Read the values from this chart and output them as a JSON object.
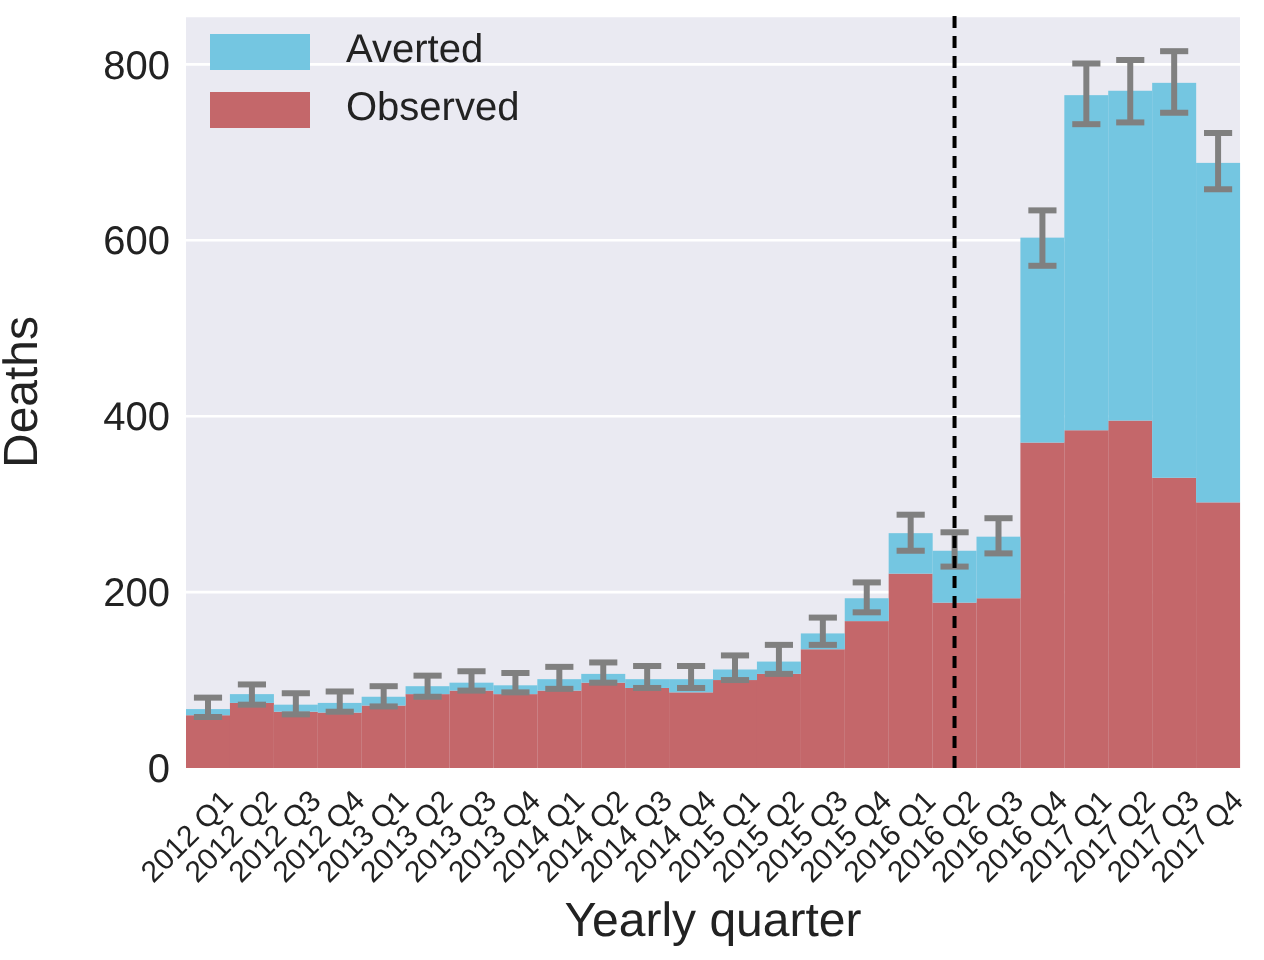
{
  "chart_data": {
    "type": "bar",
    "stacked": true,
    "xlabel": "Yearly quarter",
    "ylabel": "Deaths",
    "categories": [
      "2012 Q1",
      "2012 Q2",
      "2012 Q3",
      "2012 Q4",
      "2013 Q1",
      "2013 Q2",
      "2013 Q3",
      "2013 Q4",
      "2014 Q1",
      "2014 Q2",
      "2014 Q3",
      "2014 Q4",
      "2015 Q1",
      "2015 Q2",
      "2015 Q3",
      "2015 Q4",
      "2016 Q1",
      "2016 Q2",
      "2016 Q3",
      "2016 Q4",
      "2017 Q1",
      "2017 Q2",
      "2017 Q3",
      "2017 Q4"
    ],
    "series": [
      {
        "name": "Observed",
        "color": "#c4676a",
        "values": [
          60,
          74,
          64,
          63,
          71,
          84,
          88,
          84,
          88,
          97,
          91,
          86,
          100,
          107,
          135,
          167,
          221,
          188,
          193,
          370,
          384,
          395,
          330,
          302
        ]
      },
      {
        "name": "Averted",
        "color": "#74c6e1",
        "values": [
          7,
          10,
          8,
          11,
          10,
          9,
          9,
          10,
          13,
          10,
          10,
          15,
          12,
          14,
          18,
          26,
          46,
          59,
          70,
          233,
          381,
          375,
          449,
          386
        ],
        "errors": [
          [
            58,
            80
          ],
          [
            72,
            95
          ],
          [
            61,
            85
          ],
          [
            64,
            87
          ],
          [
            70,
            93
          ],
          [
            81,
            105
          ],
          [
            88,
            110
          ],
          [
            86,
            108
          ],
          [
            90,
            115
          ],
          [
            97,
            120
          ],
          [
            91,
            116
          ],
          [
            91,
            116
          ],
          [
            100,
            128
          ],
          [
            107,
            140
          ],
          [
            140,
            171
          ],
          [
            177,
            211
          ],
          [
            247,
            288
          ],
          [
            229,
            268
          ],
          [
            244,
            284
          ],
          [
            571,
            634
          ],
          [
            732,
            801
          ],
          [
            734,
            805
          ],
          [
            745,
            815
          ],
          [
            658,
            722
          ]
        ]
      }
    ],
    "ylim": [
      0,
      855
    ],
    "yticks": [
      0,
      200,
      400,
      600,
      800
    ],
    "grid": "y",
    "legend": "top left",
    "ref_lines": [
      {
        "axis": "x",
        "value": "2016 Q2",
        "color": "#000000",
        "line_style": "dashed"
      }
    ]
  }
}
